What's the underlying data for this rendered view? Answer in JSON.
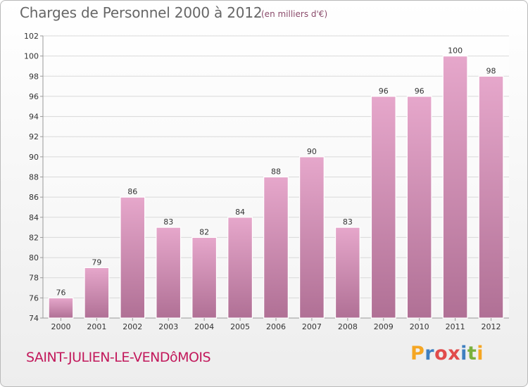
{
  "header": {
    "title": "Charges de Personnel 2000 à 2012",
    "unit": "(en milliers d'€)"
  },
  "footer": {
    "commune": "SAINT-JULIEN-LE-VENDôMOIS",
    "logo_text": "Proxiti",
    "logo_letters": [
      "P",
      "r",
      "o",
      "x",
      "i",
      "t",
      "i"
    ]
  },
  "colors": {
    "bar_top": "#e6a7cb",
    "bar_bottom": "#b07095",
    "grid": "#d9d9d9",
    "axis_text": "#333333"
  },
  "chart_data": {
    "type": "bar",
    "title": "Charges de Personnel 2000 à 2012",
    "subtitle": "(en milliers d'€)",
    "xlabel": "",
    "ylabel": "",
    "categories": [
      "2000",
      "2001",
      "2002",
      "2003",
      "2004",
      "2005",
      "2006",
      "2007",
      "2008",
      "2009",
      "2010",
      "2011",
      "2012"
    ],
    "values": [
      76,
      79,
      86,
      83,
      82,
      84,
      88,
      90,
      83,
      96,
      96,
      100,
      98
    ],
    "ylim": [
      74,
      102
    ],
    "yticks": [
      74,
      76,
      78,
      80,
      82,
      84,
      86,
      88,
      90,
      92,
      94,
      96,
      98,
      100,
      102
    ],
    "grid": true,
    "data_labels": true
  }
}
